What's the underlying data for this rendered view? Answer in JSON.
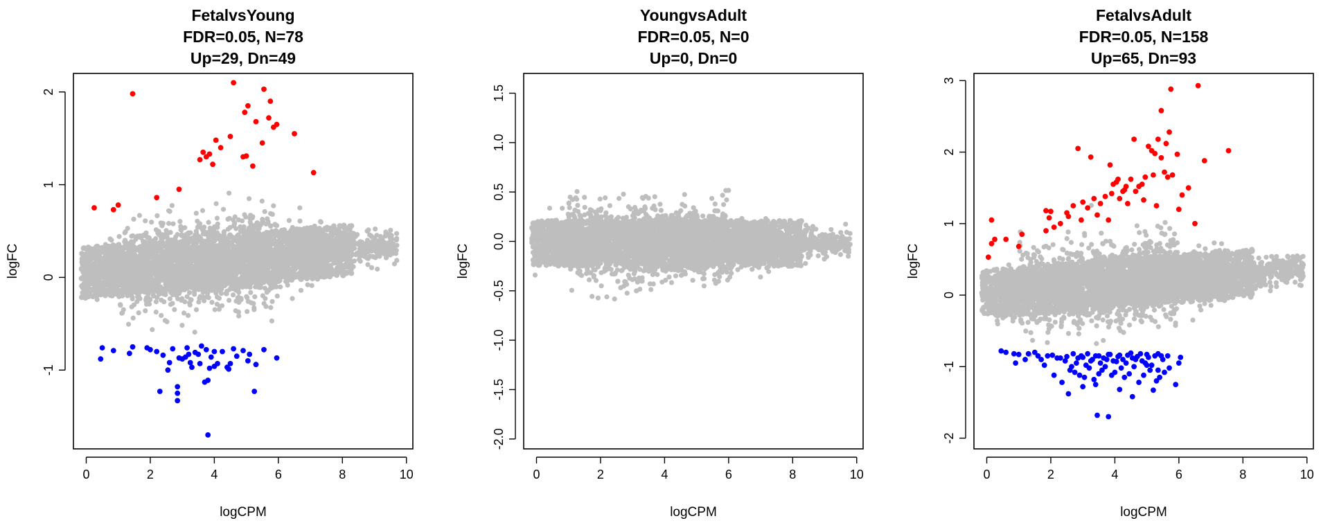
{
  "colors": {
    "background": "#ffffff",
    "points": "#bebebe",
    "up": "#ff0000",
    "down": "#0000ff",
    "axis": "#000000"
  },
  "chart_data": [
    {
      "type": "scatter",
      "title_lines": [
        "FetalvsYoung",
        "FDR=0.05, N=78",
        "Up=29, Dn=49"
      ],
      "xlabel": "logCPM",
      "ylabel": "logFC",
      "xlim": [
        -0.4,
        10.2
      ],
      "ylim": [
        -1.85,
        2.2
      ],
      "x_ticks": [
        0,
        2,
        4,
        6,
        8,
        10
      ],
      "x_tick_labels": [
        "0",
        "2",
        "4",
        "6",
        "8",
        "10"
      ],
      "y_ticks": [
        -1,
        0,
        1,
        2
      ],
      "y_tick_labels": [
        "-1",
        "0",
        "1",
        "2"
      ],
      "background_cloud": {
        "x_range": [
          -0.15,
          9.7
        ],
        "y_center": 0.05,
        "y_spread": 0.9,
        "slope": 0.03,
        "description_color": "#bebebe"
      },
      "series": [
        {
          "name": "",
          "role": "up",
          "color": "#ff0000",
          "x": [
            1.45,
            4.6,
            5.55,
            5.05,
            4.95,
            5.75,
            5.85,
            5.95,
            5.3,
            6.5,
            4.5,
            4.05,
            3.65,
            3.55,
            3.75,
            3.85,
            4.9,
            5.0,
            7.1,
            2.9,
            2.2,
            1.0,
            0.25,
            0.85,
            5.5,
            5.7,
            4.2,
            3.95,
            5.2
          ],
          "y": [
            1.98,
            2.1,
            2.03,
            1.85,
            1.78,
            1.9,
            1.62,
            1.65,
            1.68,
            1.55,
            1.52,
            1.48,
            1.35,
            1.27,
            1.3,
            1.33,
            1.3,
            1.31,
            1.13,
            0.95,
            0.86,
            0.78,
            0.75,
            0.73,
            1.45,
            1.72,
            1.4,
            1.22,
            1.2
          ]
        },
        {
          "name": "",
          "role": "down",
          "color": "#0000ff",
          "x": [
            3.8,
            2.85,
            2.85,
            2.85,
            2.3,
            2.55,
            3.3,
            3.55,
            3.7,
            3.8,
            3.85,
            4.0,
            4.1,
            4.4,
            4.45,
            4.5,
            5.25,
            5.05,
            5.1,
            5.55,
            5.95,
            3.1,
            3.2,
            3.4,
            0.5,
            1.45,
            0.85,
            1.35,
            0.45,
            2.0,
            2.4,
            2.7,
            3.0,
            3.5,
            4.7,
            4.9,
            2.6,
            3.15,
            3.6,
            4.25,
            2.9,
            3.75,
            4.0,
            4.6,
            1.9,
            2.2,
            3.25,
            3.9,
            5.3
          ],
          "y": [
            -1.7,
            -1.33,
            -1.25,
            -1.18,
            -1.23,
            -1.0,
            -0.97,
            -0.93,
            -1.13,
            -1.11,
            -0.98,
            -0.96,
            -0.93,
            -0.97,
            -0.99,
            -0.93,
            -1.23,
            -0.9,
            -0.83,
            -0.78,
            -0.87,
            -0.86,
            -0.83,
            -0.81,
            -0.76,
            -0.75,
            -0.79,
            -0.82,
            -0.88,
            -0.78,
            -0.84,
            -0.77,
            -0.88,
            -0.83,
            -0.85,
            -0.79,
            -0.92,
            -0.76,
            -0.74,
            -0.8,
            -0.87,
            -0.78,
            -0.8,
            -0.77,
            -0.76,
            -0.8,
            -0.92,
            -0.86,
            -0.94
          ]
        }
      ]
    },
    {
      "type": "scatter",
      "title_lines": [
        "YoungvsAdult",
        "FDR=0.05, N=0",
        "Up=0, Dn=0"
      ],
      "xlabel": "logCPM",
      "ylabel": "logFC",
      "xlim": [
        -0.4,
        10.2
      ],
      "ylim": [
        -2.1,
        1.7
      ],
      "x_ticks": [
        0,
        2,
        4,
        6,
        8,
        10
      ],
      "x_tick_labels": [
        "0",
        "2",
        "4",
        "6",
        "8",
        "10"
      ],
      "y_ticks": [
        -2.0,
        -1.5,
        -1.0,
        -0.5,
        0.0,
        0.5,
        1.0,
        1.5
      ],
      "y_tick_labels": [
        "-2.0",
        "-1.5",
        "-1.0",
        "-0.5",
        "0.0",
        "0.5",
        "1.0",
        "1.5"
      ],
      "background_cloud": {
        "x_range": [
          -0.15,
          9.8
        ],
        "y_center": -0.02,
        "y_spread": 0.75,
        "slope": 0.0,
        "description_color": "#bebebe"
      },
      "series": []
    },
    {
      "type": "scatter",
      "title_lines": [
        "FetalvsAdult",
        "FDR=0.05, N=158",
        "Up=65, Dn=93"
      ],
      "xlabel": "logCPM",
      "ylabel": "logFC",
      "xlim": [
        -0.4,
        10.2
      ],
      "ylim": [
        -2.15,
        3.1
      ],
      "x_ticks": [
        0,
        2,
        4,
        6,
        8,
        10
      ],
      "x_tick_labels": [
        "0",
        "2",
        "4",
        "6",
        "8",
        "10"
      ],
      "y_ticks": [
        -2,
        -1,
        0,
        1,
        2,
        3
      ],
      "y_tick_labels": [
        "-2",
        "-1",
        "0",
        "1",
        "2",
        "3"
      ],
      "background_cloud": {
        "x_range": [
          -0.15,
          9.9
        ],
        "y_center": 0.02,
        "y_spread": 1.1,
        "slope": 0.035,
        "description_color": "#bebebe"
      },
      "series": [
        {
          "name": "",
          "role": "up",
          "color": "#ff0000",
          "x": [
            6.6,
            5.75,
            5.45,
            5.7,
            5.35,
            5.6,
            4.6,
            5.05,
            5.15,
            5.25,
            5.45,
            5.95,
            6.8,
            7.55,
            5.65,
            5.8,
            4.95,
            3.85,
            3.25,
            2.85,
            4.1,
            4.35,
            4.3,
            4.25,
            3.95,
            4.15,
            4.65,
            4.75,
            2.5,
            2.0,
            1.95,
            1.85,
            1.0,
            0.25,
            0.15,
            0.05,
            0.6,
            1.85,
            2.7,
            3.0,
            3.35,
            3.55,
            3.7,
            3.9,
            4.05,
            4.5,
            4.85,
            5.2,
            5.55,
            6.1,
            6.3,
            2.3,
            2.55,
            3.15,
            3.45,
            3.8,
            4.4,
            4.9,
            5.3,
            6.0,
            0.15,
            1.1,
            2.1,
            2.95,
            6.5
          ],
          "y": [
            2.93,
            2.88,
            2.58,
            2.28,
            2.18,
            2.12,
            2.18,
            2.08,
            2.02,
            1.98,
            1.92,
            1.97,
            1.88,
            2.02,
            1.65,
            1.68,
            1.65,
            1.82,
            1.93,
            2.05,
            1.62,
            1.52,
            1.47,
            1.45,
            1.55,
            1.35,
            1.45,
            1.52,
            1.15,
            1.17,
            1.08,
            0.9,
            0.68,
            0.78,
            0.72,
            0.53,
            0.78,
            1.18,
            1.25,
            1.3,
            1.35,
            1.28,
            1.38,
            1.42,
            1.58,
            1.62,
            1.55,
            1.68,
            1.72,
            1.4,
            1.5,
            1.0,
            1.1,
            1.22,
            1.12,
            1.05,
            1.28,
            1.33,
            1.25,
            1.2,
            1.05,
            0.85,
            0.95,
            1.05,
            1.0
          ]
        },
        {
          "name": "",
          "role": "down",
          "color": "#0000ff",
          "x": [
            3.45,
            3.8,
            4.55,
            4.15,
            3.4,
            3.0,
            2.55,
            2.35,
            2.1,
            1.8,
            1.6,
            1.2,
            1.0,
            0.85,
            0.6,
            0.45,
            0.9,
            2.6,
            2.75,
            2.9,
            3.05,
            3.2,
            3.35,
            3.5,
            3.6,
            3.7,
            3.9,
            4.0,
            4.2,
            4.3,
            4.45,
            4.6,
            4.75,
            4.9,
            5.0,
            5.1,
            5.2,
            5.3,
            5.4,
            5.55,
            5.7,
            5.9,
            6.0,
            2.45,
            2.8,
            3.1,
            3.25,
            3.55,
            3.75,
            4.05,
            4.35,
            4.65,
            4.85,
            5.15,
            5.35,
            2.2,
            2.65,
            2.95,
            3.3,
            3.65,
            3.95,
            4.25,
            4.55,
            4.95,
            5.25,
            5.5,
            1.5,
            1.9,
            2.3,
            2.7,
            3.0,
            3.4,
            3.85,
            4.1,
            4.4,
            4.8,
            5.05,
            5.45,
            1.3,
            1.7,
            2.05,
            2.5,
            2.85,
            3.15,
            3.5,
            3.8,
            4.15,
            4.5,
            4.7,
            5.0,
            5.35,
            5.65,
            6.05
          ],
          "y": [
            -1.68,
            -1.7,
            -1.42,
            -1.32,
            -1.25,
            -1.28,
            -1.38,
            -1.22,
            -1.12,
            -0.98,
            -0.85,
            -0.9,
            -0.83,
            -0.82,
            -0.8,
            -0.78,
            -0.95,
            -1.05,
            -1.08,
            -1.12,
            -1.15,
            -1.02,
            -1.18,
            -1.1,
            -1.05,
            -1.0,
            -1.12,
            -1.08,
            -1.02,
            -1.15,
            -1.1,
            -1.0,
            -1.22,
            -1.12,
            -0.98,
            -1.05,
            -1.33,
            -1.2,
            -1.15,
            -1.08,
            -1.02,
            -1.25,
            -0.95,
            -0.92,
            -0.95,
            -0.98,
            -0.92,
            -0.95,
            -0.9,
            -0.93,
            -0.95,
            -0.9,
            -0.92,
            -0.98,
            -1.05,
            -0.88,
            -1.0,
            -0.85,
            -0.9,
            -0.88,
            -0.92,
            -0.9,
            -0.88,
            -0.95,
            -0.85,
            -0.9,
            -0.8,
            -0.85,
            -0.88,
            -0.82,
            -0.87,
            -0.85,
            -0.83,
            -0.86,
            -0.84,
            -0.82,
            -0.87,
            -0.85,
            -0.82,
            -0.9,
            -0.84,
            -0.86,
            -0.88,
            -0.82,
            -0.85,
            -0.83,
            -0.84,
            -0.81,
            -0.86,
            -0.83,
            -0.82,
            -0.85,
            -0.87
          ]
        }
      ]
    }
  ]
}
